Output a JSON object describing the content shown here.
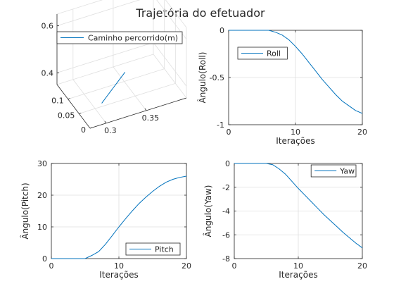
{
  "figure": {
    "title": "Trajetória do efetuador"
  },
  "colors": {
    "series": "#0072bd",
    "axis": "#262626",
    "grid": "#dfdfdf"
  },
  "chart_data": [
    {
      "id": "path3d",
      "type": "line",
      "dimensions": 3,
      "legend": "Caminho percorrido(m)",
      "legend_position": "top",
      "grid": true,
      "x_ticks": [
        "0.3",
        "0.35"
      ],
      "y_ticks": [
        "0",
        "0.05",
        "0.1"
      ],
      "z_ticks": [
        "0.4",
        "0.6"
      ],
      "xlim": [
        0.28,
        0.4
      ],
      "ylim": [
        0.0,
        0.15
      ],
      "zlim": [
        0.35,
        0.65
      ],
      "points": [
        [
          0.3,
          0.02,
          0.41
        ],
        [
          0.31,
          0.03,
          0.42
        ],
        [
          0.32,
          0.04,
          0.43
        ],
        [
          0.33,
          0.05,
          0.44
        ],
        [
          0.34,
          0.06,
          0.45
        ]
      ]
    },
    {
      "id": "roll",
      "type": "line",
      "xlabel": "Iterações",
      "ylabel": "Ângulo(Roll)",
      "legend": "Roll",
      "legend_position": "top-left",
      "grid": true,
      "xlim": [
        0,
        20
      ],
      "ylim": [
        -1,
        0
      ],
      "x_ticks": [
        "0",
        "10",
        "20"
      ],
      "y_ticks": [
        "0",
        "-0.5",
        "-1"
      ],
      "x": [
        0,
        1,
        2,
        3,
        4,
        5,
        6,
        7,
        8,
        9,
        10,
        11,
        12,
        13,
        14,
        15,
        16,
        17,
        18,
        19,
        20
      ],
      "y": [
        0,
        0,
        0,
        0,
        0,
        0,
        0,
        -0.02,
        -0.05,
        -0.1,
        -0.17,
        -0.25,
        -0.34,
        -0.43,
        -0.52,
        -0.6,
        -0.68,
        -0.75,
        -0.8,
        -0.85,
        -0.88
      ]
    },
    {
      "id": "pitch",
      "type": "line",
      "xlabel": "Iterações",
      "ylabel": "Ângulo(Pitch)",
      "legend": "Pitch",
      "legend_position": "bottom-right",
      "grid": true,
      "xlim": [
        0,
        20
      ],
      "ylim": [
        0,
        30
      ],
      "x_ticks": [
        "0",
        "10",
        "20"
      ],
      "y_ticks": [
        "0",
        "10",
        "20",
        "30"
      ],
      "x": [
        0,
        1,
        2,
        3,
        4,
        5,
        6,
        7,
        8,
        9,
        10,
        11,
        12,
        13,
        14,
        15,
        16,
        17,
        18,
        19,
        20
      ],
      "y": [
        0,
        0,
        0,
        0,
        0,
        0,
        1,
        2.2,
        4.5,
        7.2,
        10,
        12.6,
        15.1,
        17.4,
        19.4,
        21.2,
        22.8,
        24.1,
        25,
        25.6,
        26
      ]
    },
    {
      "id": "yaw",
      "type": "line",
      "xlabel": "Iterações",
      "ylabel": "Ângulo(Yaw)",
      "legend": "Yaw",
      "legend_position": "top-right",
      "grid": true,
      "xlim": [
        0,
        20
      ],
      "ylim": [
        -8,
        0
      ],
      "x_ticks": [
        "0",
        "10",
        "20"
      ],
      "y_ticks": [
        "0",
        "-2",
        "-4",
        "-6",
        "-8"
      ],
      "x": [
        0,
        1,
        2,
        3,
        4,
        5,
        6,
        7,
        8,
        9,
        10,
        11,
        12,
        13,
        14,
        15,
        16,
        17,
        18,
        19,
        20
      ],
      "y": [
        0,
        0,
        0,
        0,
        0,
        0,
        -0.1,
        -0.45,
        -0.9,
        -1.5,
        -2.1,
        -2.65,
        -3.2,
        -3.75,
        -4.3,
        -4.8,
        -5.3,
        -5.8,
        -6.25,
        -6.7,
        -7.1
      ]
    }
  ]
}
